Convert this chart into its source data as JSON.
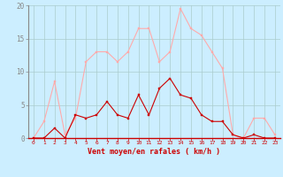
{
  "x": [
    0,
    1,
    2,
    3,
    4,
    5,
    6,
    7,
    8,
    9,
    10,
    11,
    12,
    13,
    14,
    15,
    16,
    17,
    18,
    19,
    20,
    21,
    22,
    23
  ],
  "y_rafales": [
    0.0,
    2.5,
    8.5,
    0.5,
    3.0,
    11.5,
    13.0,
    13.0,
    11.5,
    13.0,
    16.5,
    16.5,
    11.5,
    13.0,
    19.5,
    16.5,
    15.5,
    13.0,
    10.5,
    0.5,
    0.0,
    3.0,
    3.0,
    0.5
  ],
  "y_moyen": [
    0.0,
    0.0,
    1.5,
    0.0,
    3.5,
    3.0,
    3.5,
    5.5,
    3.5,
    3.0,
    6.5,
    3.5,
    7.5,
    9.0,
    6.5,
    6.0,
    3.5,
    2.5,
    2.5,
    0.5,
    0.0,
    0.5,
    0.0,
    0.0
  ],
  "color_rafales": "#ffaaaa",
  "color_moyen": "#cc0000",
  "bg_color": "#cceeff",
  "grid_color": "#aacccc",
  "xlabel": "Vent moyen/en rafales ( km/h )",
  "ylim": [
    0,
    20
  ],
  "xlim": [
    -0.5,
    23.5
  ],
  "yticks": [
    0,
    5,
    10,
    15,
    20
  ],
  "xticks": [
    0,
    1,
    2,
    3,
    4,
    5,
    6,
    7,
    8,
    9,
    10,
    11,
    12,
    13,
    14,
    15,
    16,
    17,
    18,
    19,
    20,
    21,
    22,
    23
  ]
}
